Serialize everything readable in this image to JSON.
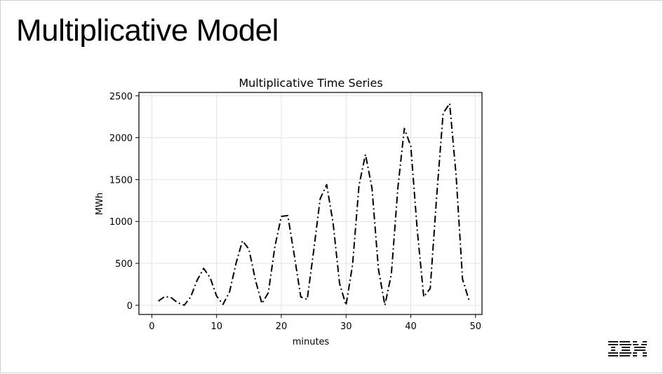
{
  "slide": {
    "title": "Multiplicative Model",
    "logo_text": "IBM"
  },
  "chart_data": {
    "type": "line",
    "title": "Multiplicative Time Series",
    "xlabel": "minutes",
    "ylabel": "MWh",
    "xlim": [
      -2,
      51
    ],
    "ylim": [
      -110,
      2540
    ],
    "xticks": [
      0,
      10,
      20,
      30,
      40,
      50
    ],
    "yticks": [
      0,
      500,
      1000,
      1500,
      2000,
      2500
    ],
    "grid": true,
    "line_style": "dash-dot",
    "line_color": "#000000",
    "series": [
      {
        "x": [
          1,
          2,
          3,
          4,
          5,
          6,
          7,
          8,
          9,
          10,
          11,
          12,
          13,
          14,
          15,
          16,
          17,
          18,
          19,
          20,
          21,
          22,
          23,
          24,
          25,
          26,
          27,
          28,
          29,
          30,
          31,
          32,
          33,
          34,
          35,
          36,
          37,
          38,
          39,
          40,
          41,
          42,
          43,
          44,
          45,
          46,
          47,
          48,
          49
        ],
        "y": [
          50,
          105,
          90,
          30,
          0,
          100,
          300,
          440,
          330,
          110,
          10,
          160,
          500,
          770,
          670,
          300,
          20,
          150,
          700,
          1060,
          1070,
          600,
          100,
          70,
          650,
          1270,
          1440,
          980,
          260,
          0,
          480,
          1430,
          1800,
          1400,
          430,
          0,
          370,
          1400,
          2110,
          1900,
          900,
          100,
          200,
          1300,
          2290,
          2410,
          1550,
          310,
          60
        ]
      }
    ]
  }
}
